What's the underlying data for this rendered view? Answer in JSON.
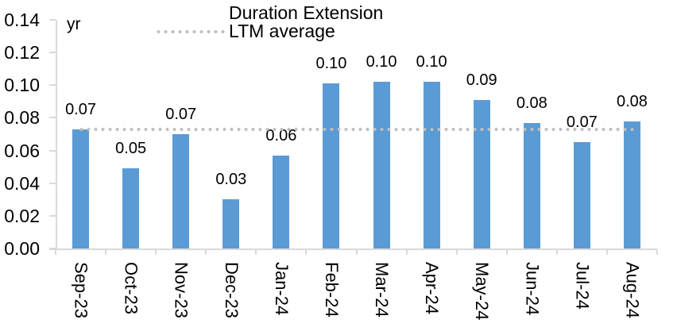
{
  "chart_data": {
    "type": "bar",
    "title": "",
    "unit_label": "yr",
    "categories": [
      "Sep-23",
      "Oct-23",
      "Nov-23",
      "Dec-23",
      "Jan-24",
      "Feb-24",
      "Mar-24",
      "Apr-24",
      "May-24",
      "Jun-24",
      "Jul-24",
      "Aug-24"
    ],
    "series": [
      {
        "name": "Duration Extension",
        "type": "bar",
        "color": "#5B9BD5",
        "values": [
          0.073,
          0.049,
          0.07,
          0.03,
          0.057,
          0.101,
          0.102,
          0.102,
          0.091,
          0.077,
          0.065,
          0.078
        ],
        "data_labels": [
          "0.07",
          "0.05",
          "0.07",
          "0.03",
          "0.06",
          "0.10",
          "0.10",
          "0.10",
          "0.09",
          "0.08",
          "0.07",
          "0.08"
        ]
      },
      {
        "name": "LTM average",
        "type": "line",
        "line_style": "dotted",
        "color": "#BFBFBF",
        "value": 0.073
      }
    ],
    "y_axis": {
      "min": 0.0,
      "max": 0.14,
      "step": 0.02,
      "tick_labels": [
        "0.00",
        "0.02",
        "0.04",
        "0.06",
        "0.08",
        "0.10",
        "0.12",
        "0.14"
      ],
      "unit": "yr"
    },
    "x_axis": {
      "label_rotation": "vertical"
    },
    "legend_position": "top",
    "grid": false,
    "colors": {
      "bar": "#5B9BD5",
      "average_line": "#BFBFBF",
      "axis": "#D9D9D9",
      "text": "#000000"
    }
  }
}
